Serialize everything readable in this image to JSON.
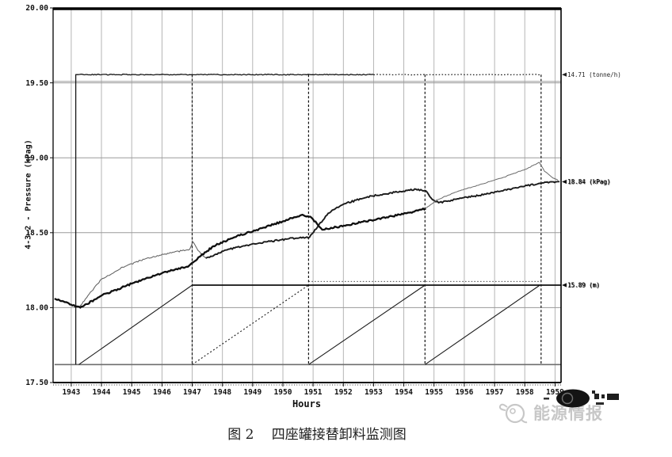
{
  "figure": {
    "caption": "图 2　 四座罐接替卸料监测图"
  },
  "watermark": {
    "text": "能源情报",
    "color": "#c7c7c7",
    "icon": "bird-logo-icon"
  },
  "chart_data": {
    "type": "line",
    "title": "",
    "xlabel": "Hours",
    "ylabel": "4-3-2 - Pressure (kPag)",
    "xlim": [
      1942.4,
      1959.2
    ],
    "ylim": [
      17.5,
      20.0
    ],
    "grid": true,
    "x_ticks": [
      1943,
      1944,
      1945,
      1946,
      1947,
      1948,
      1949,
      1950,
      1951,
      1952,
      1953,
      1954,
      1955,
      1956,
      1957,
      1958,
      1959
    ],
    "y_ticks": [
      {
        "label": "20.00",
        "value": 20.0
      },
      {
        "label": "19.50",
        "value": 19.5
      },
      {
        "label": "19.00",
        "value": 19.0
      },
      {
        "label": "18.50",
        "value": 18.5
      },
      {
        "label": "18.00",
        "value": 18.0
      },
      {
        "label": "17.50",
        "value": 17.5
      }
    ],
    "event_lines": {
      "x": [
        1947.0,
        1950.85,
        1954.7,
        1958.54
      ],
      "top": 19.555,
      "bottom": 17.62
    },
    "annotations": [
      {
        "name": "flow-rate-label",
        "text": "14.71 (tonne/h)",
        "y": 19.555,
        "color": "#222",
        "doubled": false
      },
      {
        "name": "final-pressure-label",
        "text": "18.84 (kPag)",
        "y": 18.84,
        "color": "#111",
        "doubled": true
      },
      {
        "name": "tank-level-label",
        "text": "15.89 (m)",
        "y": 18.15,
        "color": "#111",
        "doubled": true
      }
    ],
    "series": [
      {
        "name": "flow-setpoint-line",
        "color": "#9c9c9c",
        "width": 1,
        "noise": 0,
        "points": [
          [
            1942.4,
            19.51
          ],
          [
            1959.2,
            19.51
          ]
        ]
      },
      {
        "name": "tank-level-base-line",
        "color": "#6e6e6e",
        "width": 1.6,
        "noise": 0,
        "points": [
          [
            1942.45,
            17.62
          ],
          [
            1959.2,
            17.62
          ]
        ]
      },
      {
        "name": "tank-level-ramp-1",
        "color": "#1c1c1c",
        "width": 1.1,
        "noise": 0,
        "points": [
          [
            1943.25,
            17.62
          ],
          [
            1947.0,
            18.15
          ]
        ]
      },
      {
        "name": "tank-level-ramp-2",
        "color": "#1c1c1c",
        "width": 1.1,
        "dash": "2 2.6",
        "noise": 0,
        "points": [
          [
            1947.0,
            17.62
          ],
          [
            1950.85,
            18.15
          ]
        ]
      },
      {
        "name": "tank-level-ramp-3",
        "color": "#1c1c1c",
        "width": 1.1,
        "noise": 0,
        "points": [
          [
            1950.85,
            17.62
          ],
          [
            1954.7,
            18.15
          ]
        ]
      },
      {
        "name": "tank-level-ramp-4",
        "color": "#1c1c1c",
        "width": 1.1,
        "noise": 0,
        "points": [
          [
            1954.7,
            17.62
          ],
          [
            1958.5,
            18.15
          ]
        ]
      },
      {
        "name": "tank-level-hold-line",
        "color": "#111111",
        "width": 1.8,
        "noise": 0,
        "points": [
          [
            1947.0,
            18.15
          ],
          [
            1959.2,
            18.15
          ]
        ]
      },
      {
        "name": "tank-level-hold-dotted",
        "color": "#333333",
        "width": 0.9,
        "dash": "1.6 2.2",
        "noise": 0,
        "points": [
          [
            1950.85,
            18.175
          ],
          [
            1958.5,
            18.175
          ]
        ]
      },
      {
        "name": "unloading-flow-rate",
        "color": "#161616",
        "width": 1.3,
        "noise": 0.55,
        "points": [
          [
            1943.15,
            17.62
          ],
          [
            1943.15,
            19.555
          ],
          [
            1945,
            19.555
          ],
          [
            1947,
            19.555
          ],
          [
            1949,
            19.555
          ],
          [
            1951,
            19.555
          ],
          [
            1953,
            19.555
          ]
        ]
      },
      {
        "name": "unloading-flow-rate-dotted",
        "color": "#161616",
        "width": 1.2,
        "dash": "1.6 2.4",
        "noise": 0.4,
        "points": [
          [
            1953,
            19.555
          ],
          [
            1958.54,
            19.555
          ]
        ]
      },
      {
        "name": "pressure-tank-a-early",
        "color": "#606060",
        "width": 1.05,
        "noise": 0.9,
        "points": [
          [
            1943.27,
            18.0
          ],
          [
            1943.55,
            18.08
          ],
          [
            1944.0,
            18.19
          ],
          [
            1944.7,
            18.27
          ],
          [
            1945.5,
            18.33
          ],
          [
            1946.4,
            18.37
          ],
          [
            1946.92,
            18.39
          ],
          [
            1947.02,
            18.44
          ],
          [
            1947.2,
            18.38
          ],
          [
            1947.45,
            18.33
          ]
        ]
      },
      {
        "name": "pressure-tank-a-late",
        "color": "#1b1b1b",
        "width": 1.9,
        "noise": 1.0,
        "points": [
          [
            1947.45,
            18.33
          ],
          [
            1948.2,
            18.39
          ],
          [
            1949.2,
            18.43
          ],
          [
            1950.2,
            18.46
          ],
          [
            1950.88,
            18.47
          ],
          [
            1951.15,
            18.54
          ],
          [
            1951.5,
            18.63
          ],
          [
            1952.0,
            18.69
          ],
          [
            1952.8,
            18.74
          ],
          [
            1953.7,
            18.77
          ],
          [
            1954.4,
            18.79
          ],
          [
            1954.72,
            18.78
          ],
          [
            1954.95,
            18.72
          ],
          [
            1955.15,
            18.7
          ],
          [
            1955.9,
            18.73
          ],
          [
            1956.8,
            18.76
          ],
          [
            1957.7,
            18.8
          ],
          [
            1958.5,
            18.83
          ],
          [
            1959.15,
            18.84
          ]
        ]
      },
      {
        "name": "pressure-tank-b-main",
        "color": "#0f0f0f",
        "width": 2.3,
        "noise": 1.0,
        "points": [
          [
            1942.45,
            18.06
          ],
          [
            1943.0,
            18.02
          ],
          [
            1943.3,
            18.0
          ],
          [
            1944.0,
            18.08
          ],
          [
            1945.0,
            18.16
          ],
          [
            1946.0,
            18.23
          ],
          [
            1946.9,
            18.28
          ],
          [
            1947.25,
            18.34
          ],
          [
            1947.7,
            18.41
          ],
          [
            1948.4,
            18.47
          ],
          [
            1949.3,
            18.53
          ],
          [
            1950.2,
            18.59
          ],
          [
            1950.65,
            18.62
          ],
          [
            1950.95,
            18.6
          ],
          [
            1951.3,
            18.52
          ],
          [
            1952.1,
            18.55
          ],
          [
            1953.1,
            18.59
          ],
          [
            1954.1,
            18.63
          ],
          [
            1954.72,
            18.66
          ]
        ]
      },
      {
        "name": "pressure-tank-b-final",
        "color": "#6a6a6a",
        "width": 1.0,
        "noise": 0.45,
        "points": [
          [
            1954.72,
            18.66
          ],
          [
            1955.1,
            18.72
          ],
          [
            1955.7,
            18.77
          ],
          [
            1956.5,
            18.82
          ],
          [
            1957.3,
            18.87
          ],
          [
            1958.1,
            18.93
          ],
          [
            1958.48,
            18.97
          ],
          [
            1958.65,
            18.91
          ],
          [
            1958.9,
            18.87
          ],
          [
            1959.1,
            18.85
          ]
        ]
      }
    ]
  }
}
